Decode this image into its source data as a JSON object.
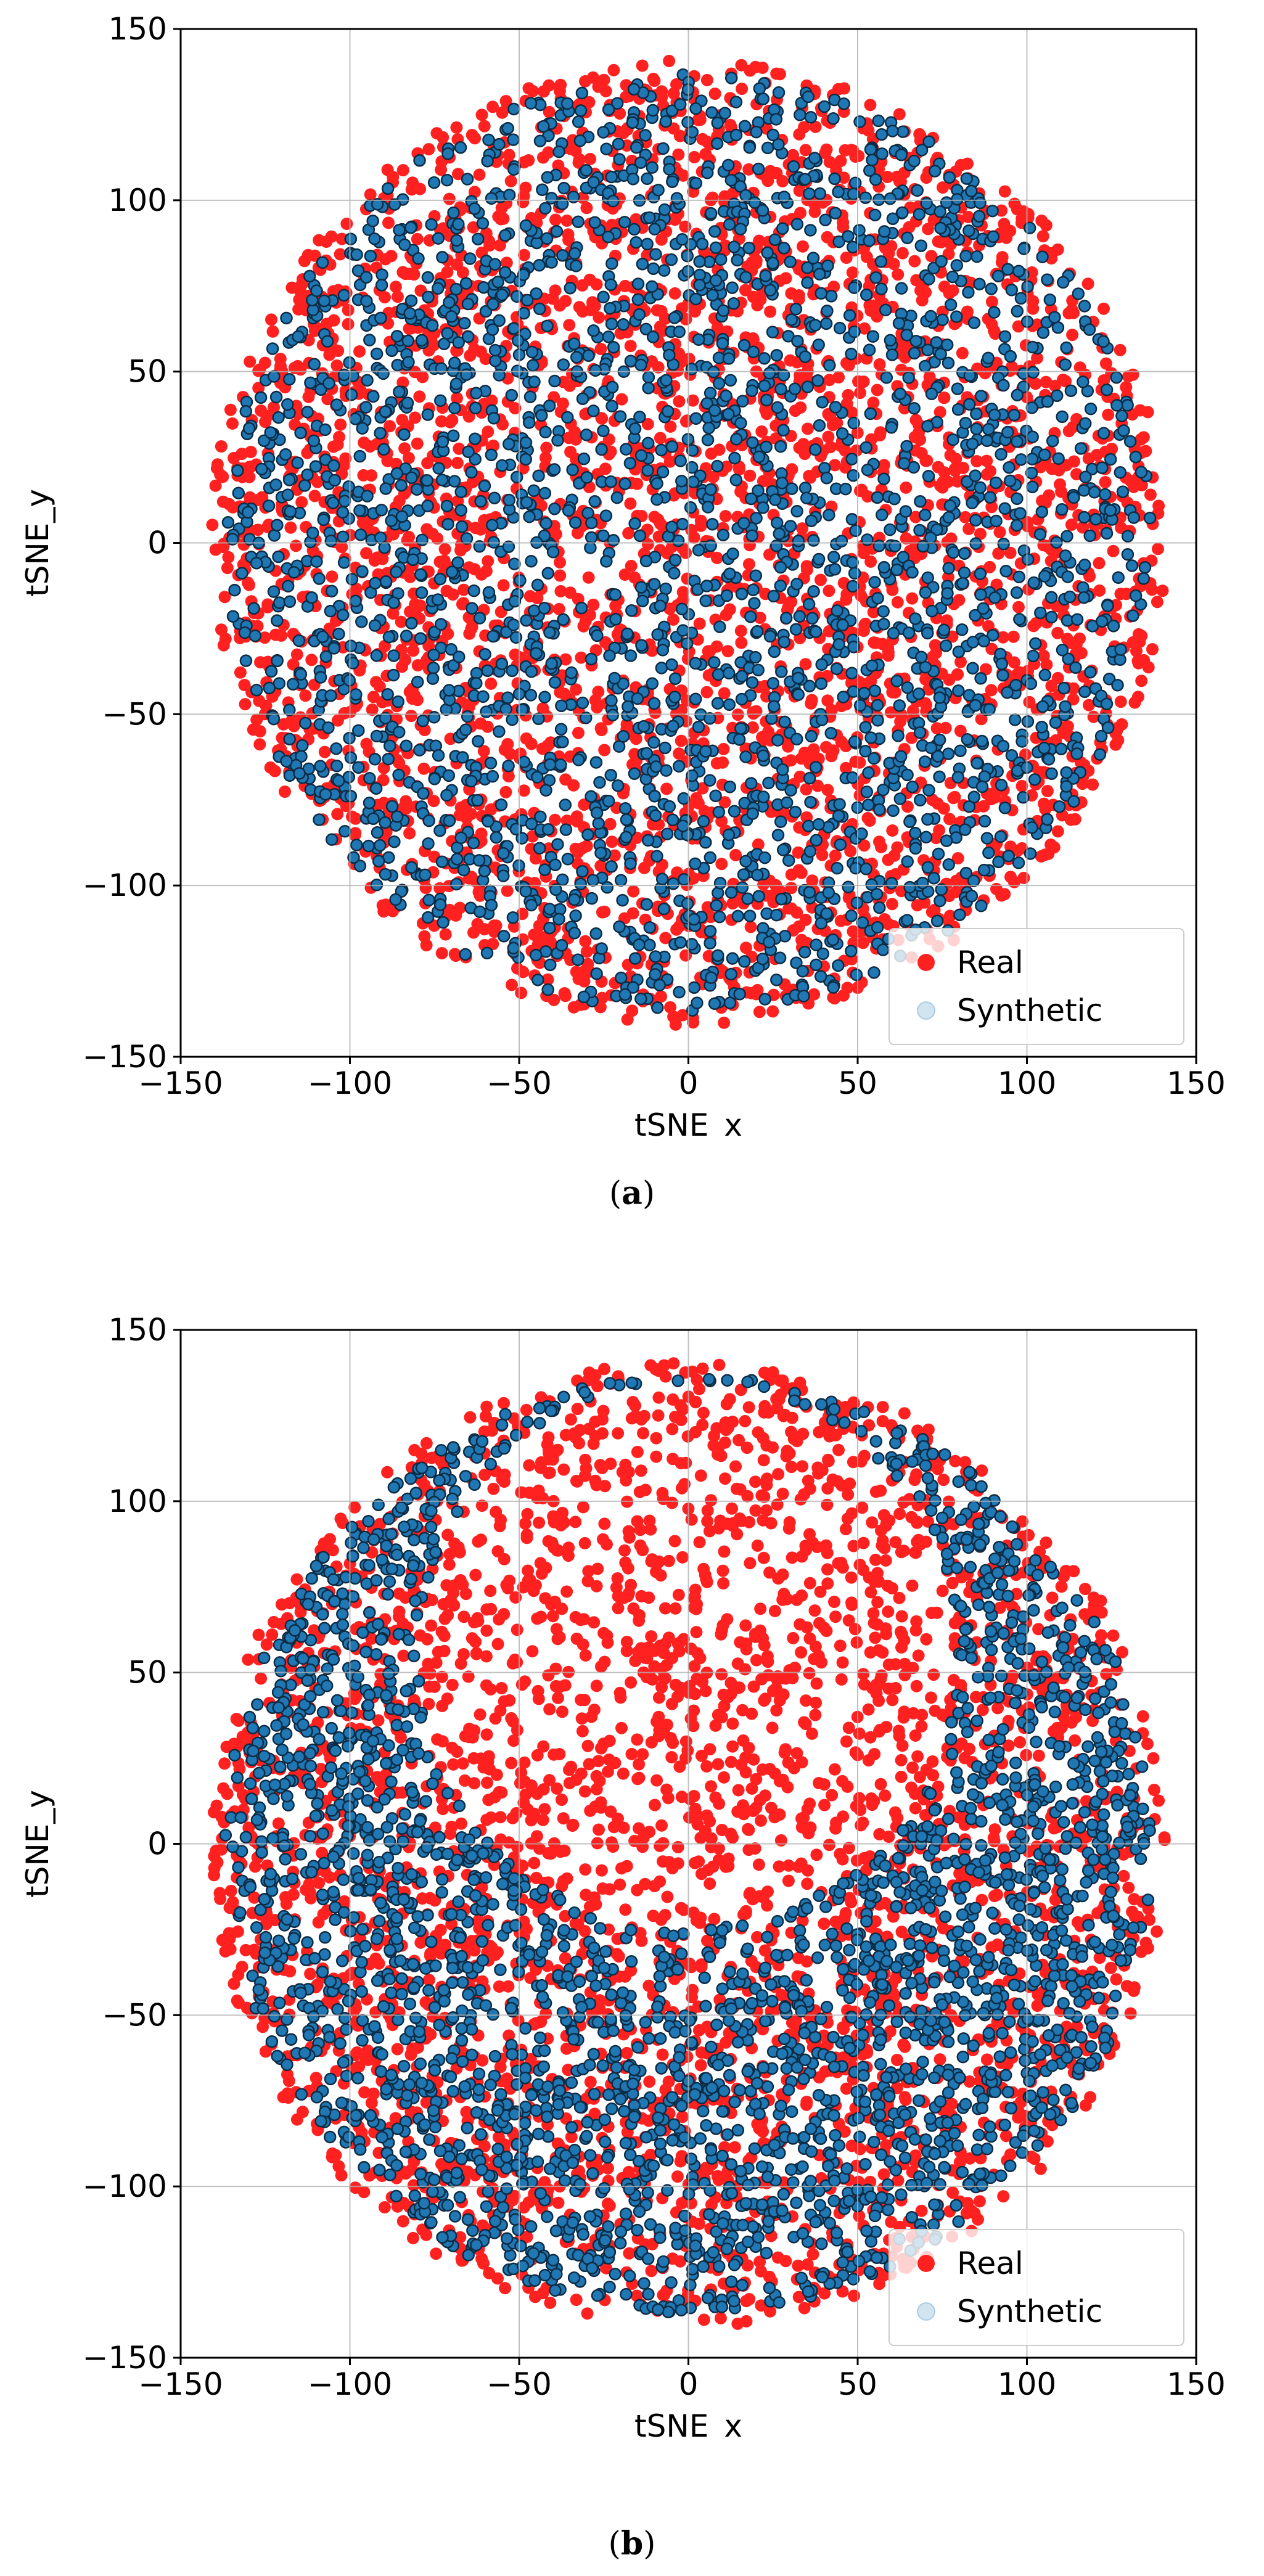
{
  "figure": {
    "panels": [
      {
        "caption_open": "(",
        "caption_letter": "a",
        "caption_close": ")",
        "legend": [
          {
            "label": "Real",
            "color": "#ff2020"
          },
          {
            "label": "Synthetic",
            "color": "#1f77b4"
          }
        ]
      },
      {
        "caption_open": "(",
        "caption_letter": "b",
        "caption_close": ")",
        "legend": [
          {
            "label": "Real",
            "color": "#ff2020"
          },
          {
            "label": "Synthetic",
            "color": "#1f77b4"
          }
        ]
      }
    ]
  },
  "chart_data": [
    {
      "type": "scatter",
      "xlabel": "tSNE_x",
      "ylabel": "tSNE_y",
      "xlim": [
        -150,
        150
      ],
      "ylim": [
        -150,
        150
      ],
      "xticks": [
        -150,
        -100,
        -50,
        0,
        50,
        100,
        150
      ],
      "yticks": [
        -150,
        -100,
        -50,
        0,
        50,
        100,
        150
      ],
      "xtick_labels": [
        "−150",
        "−100",
        "−50",
        "0",
        "50",
        "100",
        "150"
      ],
      "ytick_labels": [
        "−150",
        "−100",
        "−50",
        "0",
        "50",
        "100",
        "150"
      ],
      "grid": true,
      "legend_position": "lower-right",
      "series": [
        {
          "name": "Real",
          "color": "#ff2020",
          "marker": "circle",
          "region": "disk",
          "center": [
            0,
            0
          ],
          "radius": 141
        },
        {
          "name": "Synthetic",
          "color": "#1f77b4",
          "edge_color": "#0d2c44",
          "marker": "circle",
          "region": "disk",
          "center": [
            0,
            0
          ],
          "radius": 137
        }
      ]
    },
    {
      "type": "scatter",
      "xlabel": "tSNE_x",
      "ylabel": "tSNE_y",
      "xlim": [
        -150,
        150
      ],
      "ylim": [
        -150,
        150
      ],
      "xticks": [
        -150,
        -100,
        -50,
        0,
        50,
        100,
        150
      ],
      "yticks": [
        -150,
        -100,
        -50,
        0,
        50,
        100,
        150
      ],
      "xtick_labels": [
        "−150",
        "−100",
        "−50",
        "0",
        "50",
        "100",
        "150"
      ],
      "ytick_labels": [
        "−150",
        "−100",
        "−50",
        "0",
        "50",
        "100",
        "150"
      ],
      "grid": true,
      "legend_position": "lower-right",
      "series": [
        {
          "name": "Real",
          "color": "#ff2020",
          "marker": "circle",
          "region": "disk",
          "center": [
            0,
            0
          ],
          "radius": 141
        },
        {
          "name": "Synthetic",
          "color": "#1f77b4",
          "edge_color": "#0d2c44",
          "marker": "circle",
          "region": "ring-lower",
          "center": [
            0,
            0
          ],
          "radius": 137,
          "inner_center": [
            0,
            55
          ],
          "inner_radius": 80
        }
      ]
    }
  ]
}
